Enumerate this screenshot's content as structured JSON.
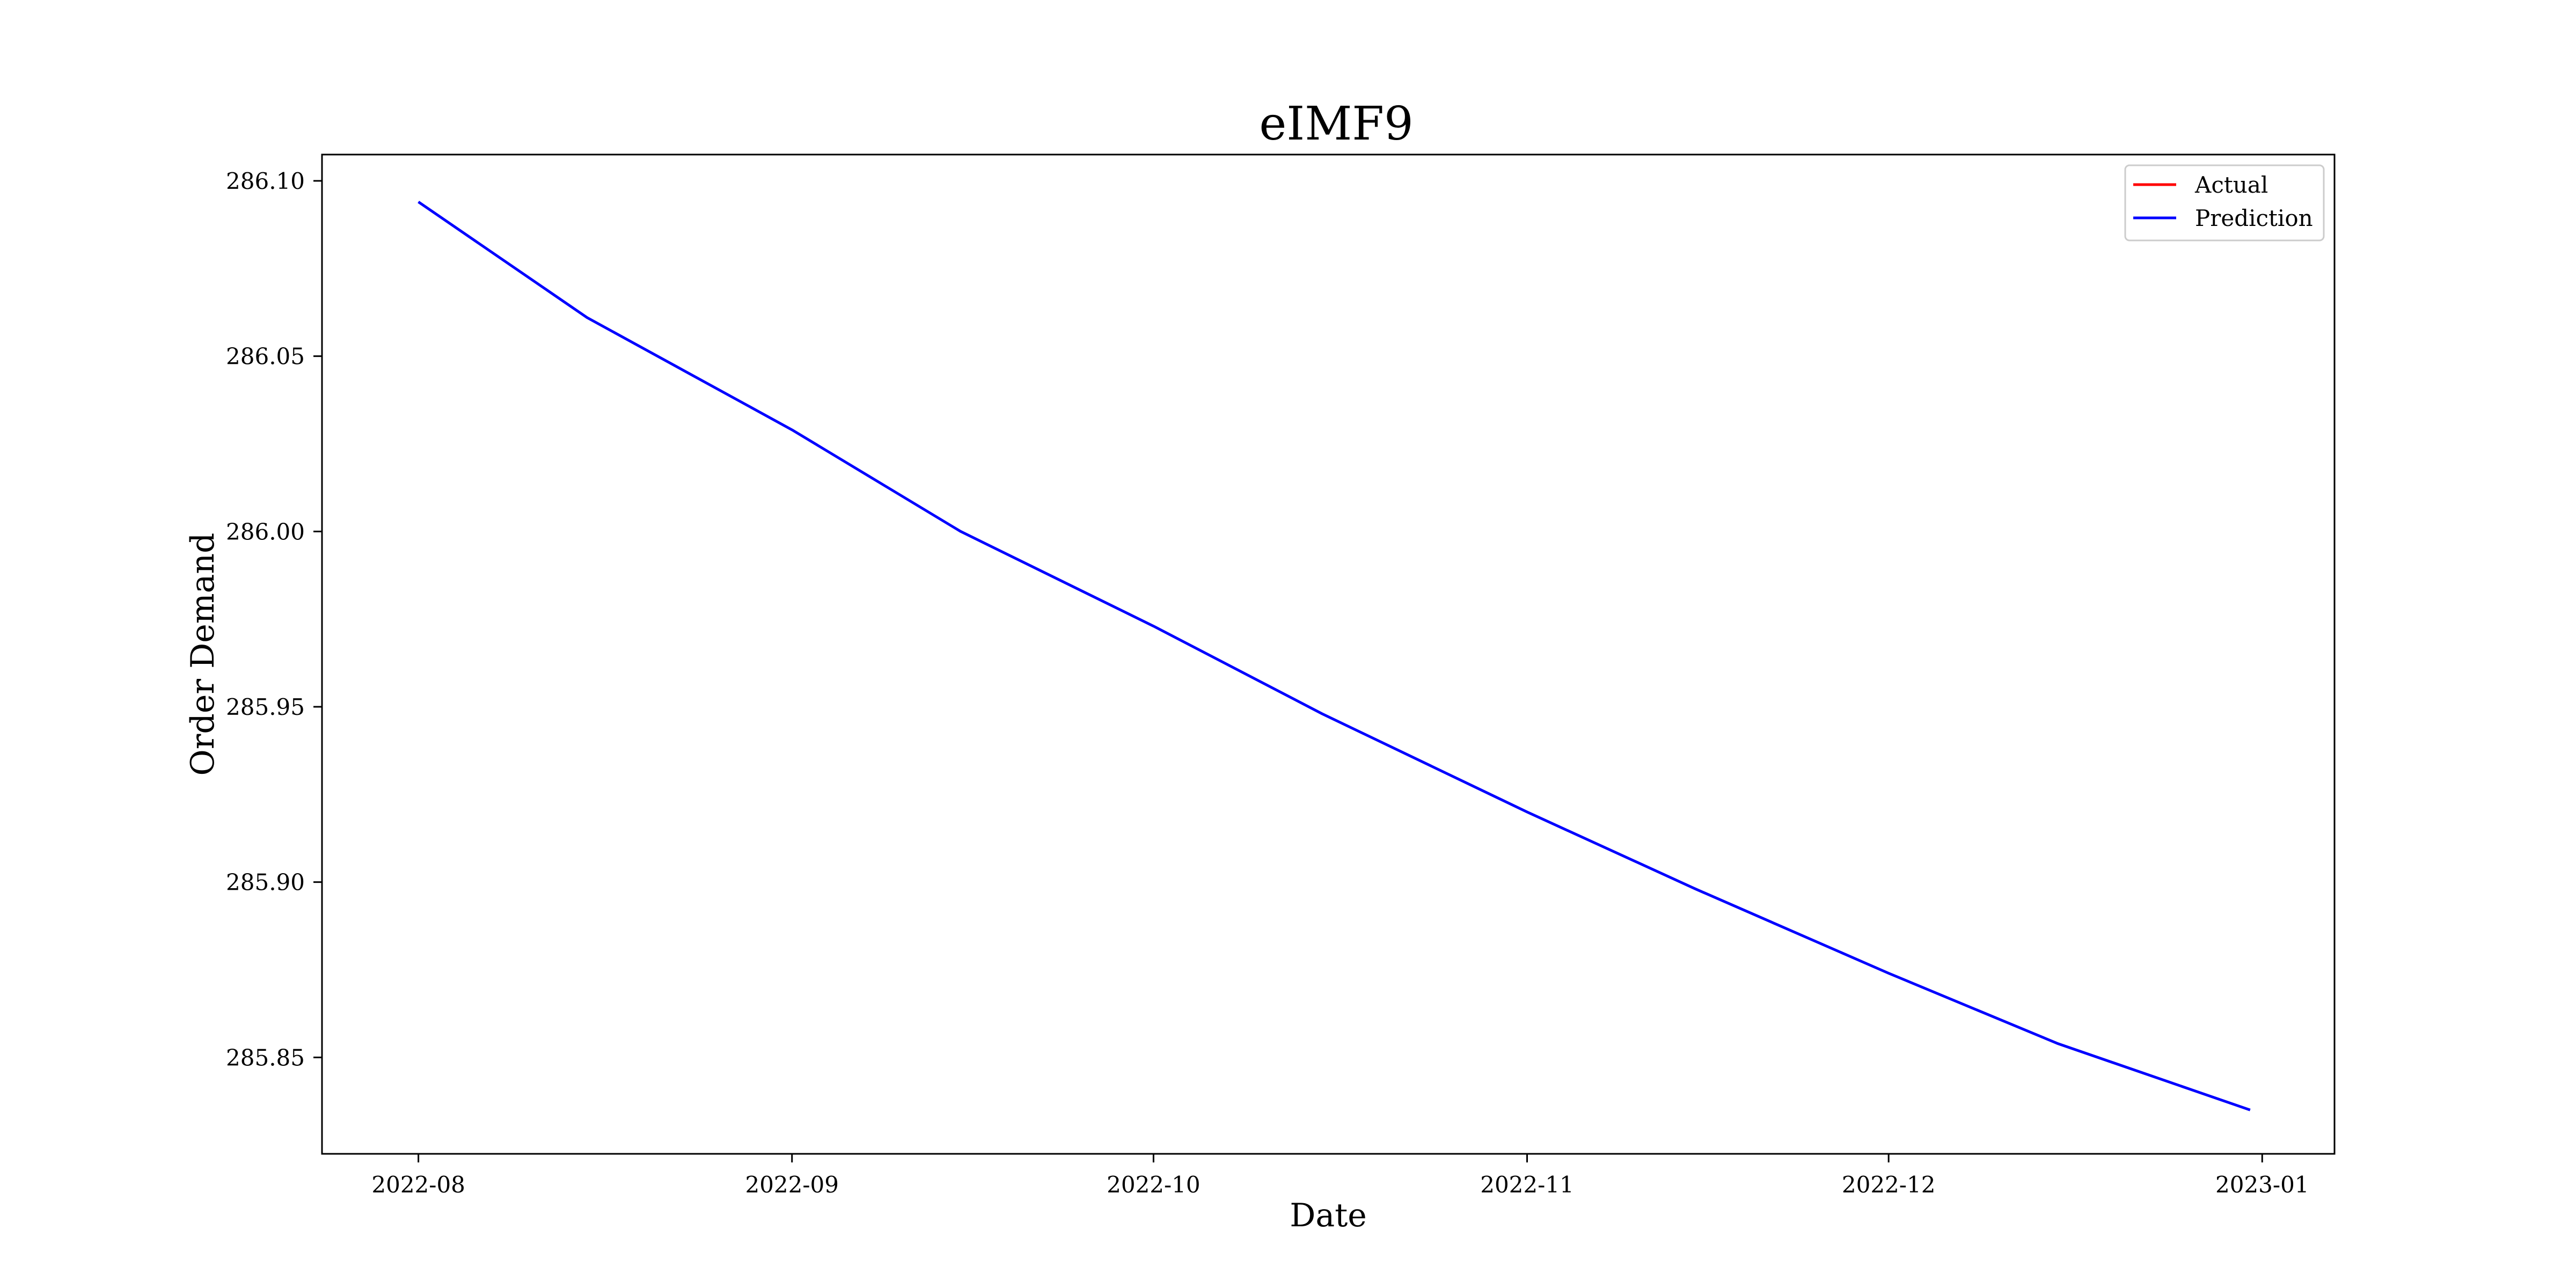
{
  "chart_data": {
    "type": "line",
    "title": "eIMF9",
    "xlabel": "Date",
    "ylabel": "Order Demand",
    "x_type": "date",
    "xlim": [
      "2022-07-24",
      "2023-01-07"
    ],
    "ylim": [
      285.8225,
      286.1075
    ],
    "x_ticks": [
      "2022-08-01",
      "2022-09-01",
      "2022-10-01",
      "2022-11-01",
      "2022-12-01",
      "2023-01-01"
    ],
    "x_tick_labels": [
      "2022-08",
      "2022-09",
      "2022-10",
      "2022-11",
      "2022-12",
      "2023-01"
    ],
    "y_ticks": [
      285.85,
      285.9,
      285.95,
      286.0,
      286.05,
      286.1
    ],
    "y_tick_labels": [
      "285.85",
      "285.90",
      "285.95",
      "286.00",
      "286.05",
      "286.10"
    ],
    "grid": false,
    "legend_position": "upper-right",
    "series": [
      {
        "name": "Actual",
        "color": "#ff0000",
        "x": [],
        "y": []
      },
      {
        "name": "Prediction",
        "color": "#0000ff",
        "x": [
          "2022-08-01",
          "2022-08-15",
          "2022-09-01",
          "2022-09-15",
          "2022-10-01",
          "2022-10-15",
          "2022-11-01",
          "2022-11-15",
          "2022-12-01",
          "2022-12-15",
          "2022-12-31"
        ],
        "y": [
          286.094,
          286.061,
          286.029,
          286.0,
          285.973,
          285.948,
          285.92,
          285.898,
          285.874,
          285.854,
          285.835
        ]
      }
    ]
  }
}
